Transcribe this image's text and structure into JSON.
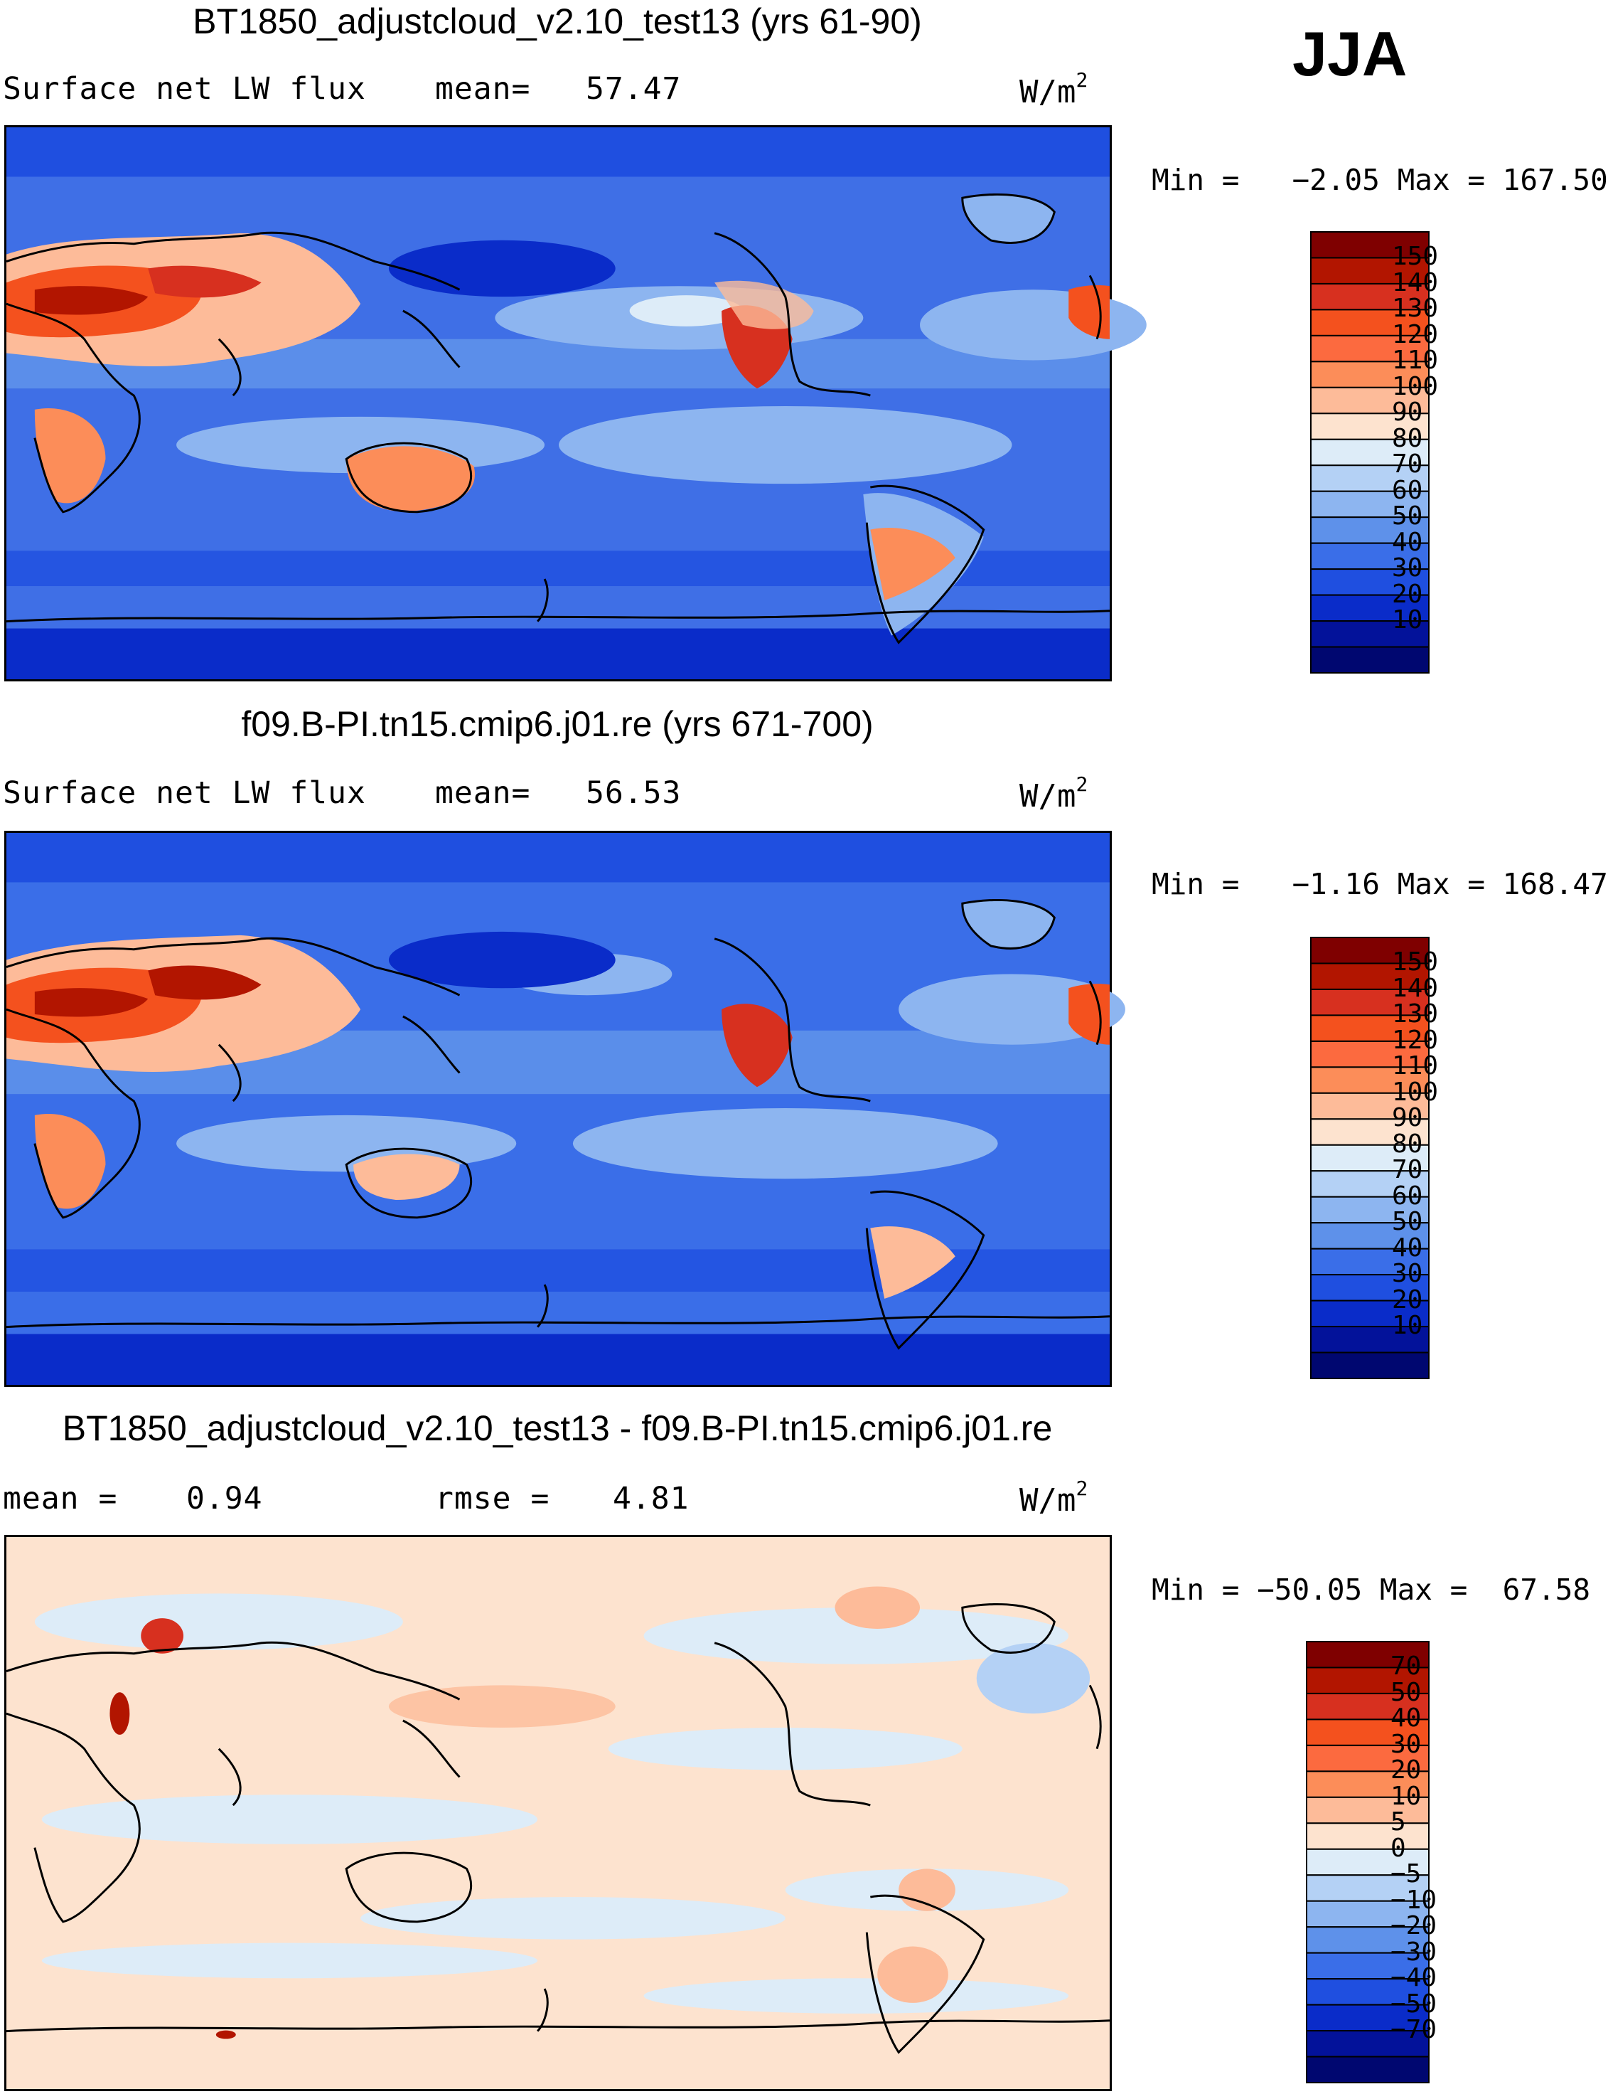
{
  "season": "JJA",
  "panels": [
    {
      "id": "test",
      "title": "BT1850_adjustcloud_v2.10_test13 (yrs 61-90)",
      "left_label": "Surface net LW flux",
      "stat1_label": "mean=",
      "stat1_value": "57.47",
      "units": "W/m",
      "units_sup": "2",
      "minmax": "Min =   −2.05 Max = 167.50",
      "colorbar": {
        "levels": [
          "150",
          "140",
          "130",
          "120",
          "110",
          "100",
          "90",
          "80",
          "70",
          "60",
          "50",
          "40",
          "30",
          "20",
          "10"
        ],
        "colors": [
          "#7f0000",
          "#b21500",
          "#d7301f",
          "#f4511e",
          "#fc6a3f",
          "#fc8d59",
          "#fdbb99",
          "#fde3cf",
          "#ddecf8",
          "#b4d1f5",
          "#8db5f0",
          "#5e91ea",
          "#3a6ee8",
          "#1f4fe0",
          "#0a2cc9",
          "#03129a",
          "#000770"
        ]
      }
    },
    {
      "id": "control",
      "title": "f09.B-PI.tn15.cmip6.j01.re (yrs 671-700)",
      "left_label": "Surface net LW flux",
      "stat1_label": "mean=",
      "stat1_value": "56.53",
      "units": "W/m",
      "units_sup": "2",
      "minmax": "Min =   −1.16 Max = 168.47",
      "colorbar": {
        "levels": [
          "150",
          "140",
          "130",
          "120",
          "110",
          "100",
          "90",
          "80",
          "70",
          "60",
          "50",
          "40",
          "30",
          "20",
          "10"
        ],
        "colors": [
          "#7f0000",
          "#b21500",
          "#d7301f",
          "#f4511e",
          "#fc6a3f",
          "#fc8d59",
          "#fdbb99",
          "#fde3cf",
          "#ddecf8",
          "#b4d1f5",
          "#8db5f0",
          "#5e91ea",
          "#3a6ee8",
          "#1f4fe0",
          "#0a2cc9",
          "#03129a",
          "#000770"
        ]
      }
    },
    {
      "id": "diff",
      "title": "BT1850_adjustcloud_v2.10_test13 - f09.B-PI.tn15.cmip6.j01.re",
      "left_label": "mean =",
      "left_value": "0.94",
      "stat1_label": "rmse =",
      "stat1_value": "4.81",
      "units": "W/m",
      "units_sup": "2",
      "minmax": "Min = −50.05 Max =  67.58",
      "colorbar": {
        "levels": [
          "70",
          "50",
          "40",
          "30",
          "20",
          "10",
          "5",
          "0",
          "−5",
          "−10",
          "−20",
          "−30",
          "−40",
          "−50",
          "−70"
        ],
        "colors": [
          "#7f0000",
          "#b21500",
          "#d7301f",
          "#f4511e",
          "#fc6a3f",
          "#fc8d59",
          "#fdbb99",
          "#fde3cf",
          "#ddecf8",
          "#b4d1f5",
          "#8db5f0",
          "#5e91ea",
          "#3a6ee8",
          "#1f4fe0",
          "#0a2cc9",
          "#03129a",
          "#000770"
        ]
      }
    }
  ]
}
